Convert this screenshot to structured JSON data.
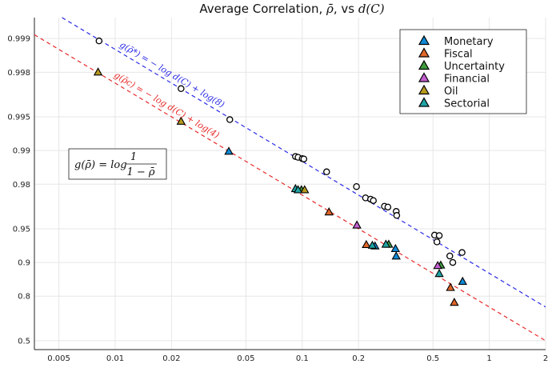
{
  "chart_data": {
    "type": "scatter",
    "title": "Average Correlation, ρ̄, vs d(C)",
    "xlabel": "",
    "ylabel": "",
    "x_scale": "log",
    "y_scale": "g(rho) = log(1/(1-rho))",
    "xlim": [
      0.0037,
      2.0
    ],
    "ylim": [
      0.4,
      0.99935
    ],
    "x_ticks": [
      "0.005",
      "0.01",
      "0.02",
      "0.05",
      "0.1",
      "0.2",
      "0.5",
      "1",
      "2"
    ],
    "y_ticks": [
      "0.999",
      "0.998",
      "0.995",
      "0.99",
      "0.98",
      "0.95",
      "0.9",
      "0.8",
      "0.5"
    ],
    "grid": true,
    "legend_position": "top-right",
    "formula_box": "g(ρ̄) = log 1/(1 − ρ̄)",
    "fit_lines": [
      {
        "label": "g(ρ̄*) = − log d(C) + log(8)",
        "intercept": 8,
        "color": "#2a2ae6"
      },
      {
        "label": "g(ρ̄c) = − log d(C) + log(4)",
        "intercept": 4,
        "color": "#e62a2a"
      }
    ],
    "series": [
      {
        "name": "Monetary",
        "color": "#0f8ad6",
        "marker": "triangle",
        "x": [
          0.0405,
          0.245,
          0.315,
          0.318,
          0.72
        ],
        "y": [
          0.9898,
          0.9285,
          0.9245,
          0.912,
          0.852
        ]
      },
      {
        "name": "Fiscal",
        "color": "#e0662a",
        "marker": "triangle",
        "x": [
          0.139,
          0.22,
          0.62,
          0.65
        ],
        "y": [
          0.9645,
          0.9305,
          0.832,
          0.772
        ]
      },
      {
        "name": "Uncertainty",
        "color": "#3f9a3f",
        "marker": "triangle",
        "x": [
          0.099,
          0.29,
          0.55
        ],
        "y": [
          0.9775,
          0.931,
          0.894
        ]
      },
      {
        "name": "Financial",
        "color": "#c45fd0",
        "marker": "triangle",
        "x": [
          0.196,
          0.53
        ],
        "y": [
          0.9535,
          0.893
        ]
      },
      {
        "name": "Oil",
        "color": "#b89a1e",
        "marker": "triangle",
        "x": [
          0.0081,
          0.0225,
          0.103
        ],
        "y": [
          0.998,
          0.9945,
          0.9775
        ]
      },
      {
        "name": "Sectorial",
        "color": "#21a3a3",
        "marker": "triangle",
        "x": [
          0.092,
          0.095,
          0.237,
          0.28,
          0.54
        ],
        "y": [
          0.978,
          0.9775,
          0.9295,
          0.931,
          0.874
        ]
      },
      {
        "name": "",
        "color": "#000000",
        "marker": "circle",
        "x": [
          0.0082,
          0.0225,
          0.041,
          0.092,
          0.095,
          0.1,
          0.102,
          0.135,
          0.195,
          0.218,
          0.232,
          0.24,
          0.275,
          0.287,
          0.318,
          0.32,
          0.51,
          0.525,
          0.54,
          0.615,
          0.638,
          0.715
        ],
        "y": [
          0.99895,
          0.9972,
          0.9947,
          0.9887,
          0.9885,
          0.9882,
          0.9881,
          0.9845,
          0.979,
          0.9735,
          0.9728,
          0.972,
          0.9685,
          0.968,
          0.965,
          0.962,
          0.943,
          0.9345,
          0.9425,
          0.9125,
          0.9,
          0.9185
        ]
      }
    ]
  }
}
